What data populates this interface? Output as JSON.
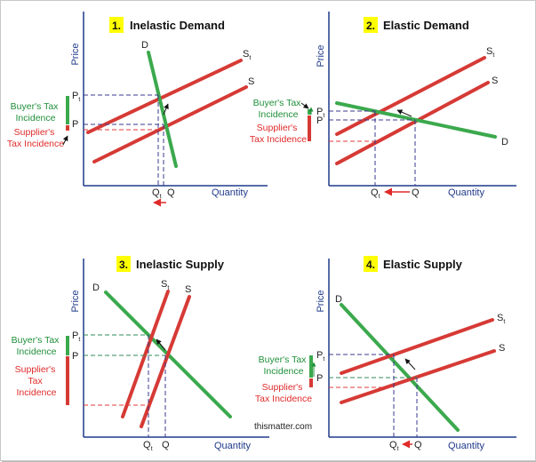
{
  "colors": {
    "demand": "#3ba94d",
    "supply": "#d63a35",
    "axis": "#1f3a8a",
    "badge": "#ffff00",
    "buyer_text": "#1f8f3a",
    "supplier_text": "#e02a2a"
  },
  "credit": "thismatter.com",
  "panels": [
    {
      "number": "1.",
      "title": "Inelastic Demand",
      "y_axis": "Price",
      "x_axis": "Quantity",
      "demand_label": "D",
      "supply_label": "S",
      "taxed_supply_label": "S",
      "taxed_supply_sub": "t",
      "price_label": "P",
      "taxed_price_label": "P",
      "taxed_price_sub": "t",
      "qty_label": "Q",
      "taxed_qty_label": "Q",
      "taxed_qty_sub": "t",
      "buyer_lines": [
        "Buyer's Tax",
        "Incidence"
      ],
      "supplier_lines": [
        "Supplier's",
        "Tax Incidence"
      ]
    },
    {
      "number": "2.",
      "title": "Elastic Demand",
      "y_axis": "Price",
      "x_axis": "Quantity",
      "demand_label": "D",
      "supply_label": "S",
      "taxed_supply_label": "S",
      "taxed_supply_sub": "t",
      "price_label": "P",
      "taxed_price_label": "P",
      "taxed_price_sub": "t",
      "qty_label": "Q",
      "taxed_qty_label": "Q",
      "taxed_qty_sub": "t",
      "buyer_lines": [
        "Buyer's Tax",
        "Incidence"
      ],
      "supplier_lines": [
        "Supplier's",
        "Tax Incidence"
      ]
    },
    {
      "number": "3.",
      "title": "Inelastic Supply",
      "y_axis": "Price",
      "x_axis": "Quantity",
      "demand_label": "D",
      "supply_label": "S",
      "taxed_supply_label": "S",
      "taxed_supply_sub": "t",
      "price_label": "P",
      "taxed_price_label": "P",
      "taxed_price_sub": "t",
      "qty_label": "Q",
      "taxed_qty_label": "Q",
      "taxed_qty_sub": "t",
      "buyer_lines": [
        "Buyer's Tax",
        "Incidence"
      ],
      "supplier_lines": [
        "Supplier's",
        "Tax",
        "Incidence"
      ]
    },
    {
      "number": "4.",
      "title": "Elastic Supply",
      "y_axis": "Price",
      "x_axis": "Quantity",
      "demand_label": "D",
      "supply_label": "S",
      "taxed_supply_label": "S",
      "taxed_supply_sub": "t",
      "price_label": "P",
      "taxed_price_label": "P",
      "taxed_price_sub": "t",
      "qty_label": "Q",
      "taxed_qty_label": "Q",
      "taxed_qty_sub": "t",
      "buyer_lines": [
        "Buyer's Tax",
        "Incidence"
      ],
      "supplier_lines": [
        "Supplier's",
        "Tax Incidence"
      ]
    }
  ]
}
